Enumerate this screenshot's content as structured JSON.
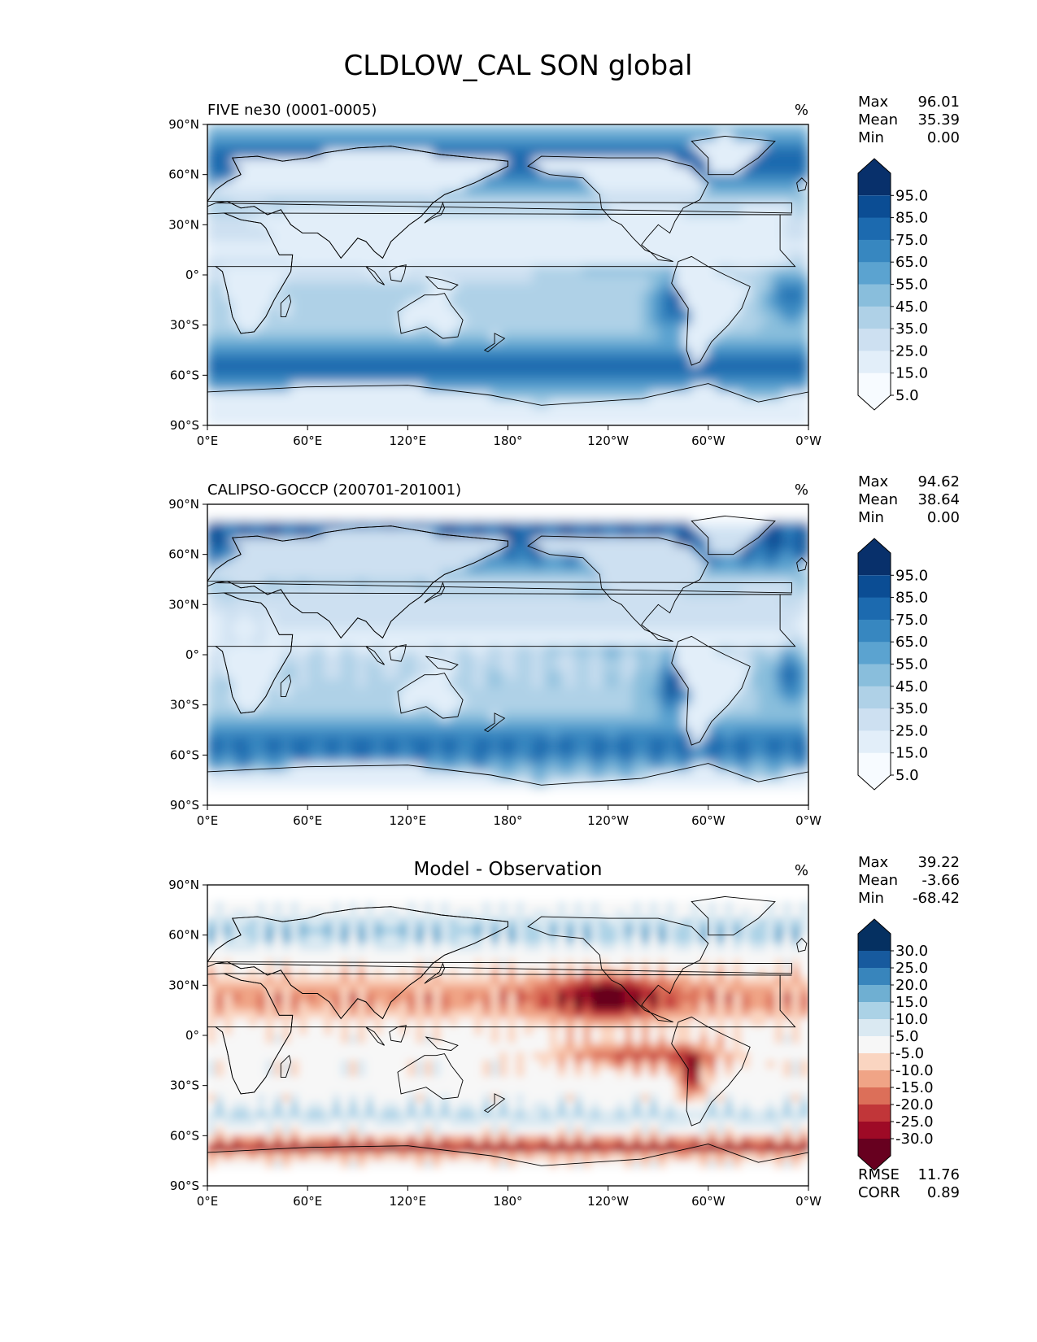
{
  "figure": {
    "title": "CLDLOW_CAL SON global"
  },
  "axis_ticks": {
    "lat": [
      "90°N",
      "60°N",
      "30°N",
      "0°",
      "30°S",
      "60°S",
      "90°S"
    ],
    "lon": [
      "0°E",
      "60°E",
      "120°E",
      "180°",
      "120°W",
      "60°W",
      "0°W"
    ]
  },
  "colors": {
    "blues": [
      "#f7fbff",
      "#e2eef9",
      "#cde0f1",
      "#afd1e7",
      "#89bedc",
      "#5ba3d0",
      "#3787c0",
      "#1c6aaf",
      "#0b4d94",
      "#08306b"
    ],
    "diff": [
      "#67001f",
      "#9e0a26",
      "#c13639",
      "#dc6f59",
      "#f0a486",
      "#fad5c1",
      "#f7f7f7",
      "#dae9f2",
      "#abd2e6",
      "#6fafd2",
      "#3885bc",
      "#175a9e",
      "#053061"
    ],
    "land_line": "#000000"
  },
  "panels": [
    {
      "id": "model",
      "left_title": "FIVE ne30 (0001-0005)",
      "center_title": "",
      "units": "%",
      "stats": [
        {
          "label": "Max",
          "value": "96.01"
        },
        {
          "label": "Mean",
          "value": "35.39"
        },
        {
          "label": "Min",
          "value": "0.00"
        }
      ],
      "colorbar_ticks": [
        "95.0",
        "85.0",
        "75.0",
        "65.0",
        "55.0",
        "45.0",
        "35.0",
        "25.0",
        "15.0",
        "5.0"
      ],
      "extra_stats": []
    },
    {
      "id": "obs",
      "left_title": "CALIPSO-GOCCP (200701-201001)",
      "center_title": "",
      "units": "%",
      "stats": [
        {
          "label": "Max",
          "value": "94.62"
        },
        {
          "label": "Mean",
          "value": "38.64"
        },
        {
          "label": "Min",
          "value": "0.00"
        }
      ],
      "colorbar_ticks": [
        "95.0",
        "85.0",
        "75.0",
        "65.0",
        "55.0",
        "45.0",
        "35.0",
        "25.0",
        "15.0",
        "5.0"
      ],
      "extra_stats": []
    },
    {
      "id": "diff",
      "left_title": "",
      "center_title": "Model - Observation",
      "units": "%",
      "stats": [
        {
          "label": "Max",
          "value": "39.22"
        },
        {
          "label": "Mean",
          "value": "-3.66"
        },
        {
          "label": "Min",
          "value": "-68.42"
        }
      ],
      "colorbar_ticks": [
        "30.0",
        "25.0",
        "20.0",
        "15.0",
        "10.0",
        "5.0",
        "-5.0",
        "-10.0",
        "-15.0",
        "-20.0",
        "-25.0",
        "-30.0"
      ],
      "extra_stats": [
        {
          "label": "RMSE",
          "value": "11.76"
        },
        {
          "label": "CORR",
          "value": "0.89"
        }
      ]
    }
  ],
  "chart_data": [
    {
      "type": "heatmap",
      "title": "FIVE ne30 (0001-0005)",
      "variable": "CLDLOW_CAL",
      "season": "SON",
      "region": "global",
      "units": "%",
      "x_range": [
        0,
        360
      ],
      "y_range": [
        -90,
        90
      ],
      "colorbar_levels": [
        5,
        15,
        25,
        35,
        45,
        55,
        65,
        75,
        85,
        95
      ],
      "max": 96.01,
      "mean": 35.39,
      "min": 0.0
    },
    {
      "type": "heatmap",
      "title": "CALIPSO-GOCCP (200701-201001)",
      "units": "%",
      "x_range": [
        0,
        360
      ],
      "y_range": [
        -90,
        90
      ],
      "colorbar_levels": [
        5,
        15,
        25,
        35,
        45,
        55,
        65,
        75,
        85,
        95
      ],
      "max": 94.62,
      "mean": 38.64,
      "min": 0.0
    },
    {
      "type": "heatmap",
      "title": "Model - Observation",
      "units": "%",
      "x_range": [
        0,
        360
      ],
      "y_range": [
        -90,
        90
      ],
      "colorbar_levels": [
        -30,
        -25,
        -20,
        -15,
        -10,
        -5,
        5,
        10,
        15,
        20,
        25,
        30
      ],
      "max": 39.22,
      "mean": -3.66,
      "min": -68.42,
      "rmse": 11.76,
      "corr": 0.89
    }
  ]
}
